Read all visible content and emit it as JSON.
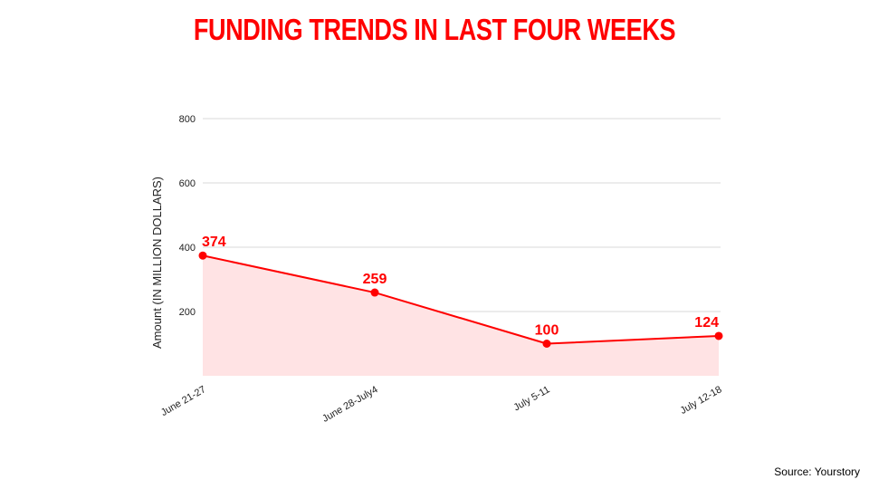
{
  "colors": {
    "accent": "#ff0000",
    "area_fill": "#ffe3e4",
    "grid": "#d9d9d9"
  },
  "source": "Source: Yourstory",
  "chart_data": {
    "type": "area",
    "title": "FUNDING TRENDS IN LAST FOUR WEEKS",
    "xlabel": "",
    "ylabel": "Amount (IN MILLION DOLLARS)",
    "categories": [
      "June 21-27",
      "June 28-July4",
      "July 5-11",
      "July 12-18"
    ],
    "series": [
      {
        "values": [
          374,
          259,
          100,
          124
        ]
      }
    ],
    "data_labels": [
      "374",
      "259",
      "100",
      "124"
    ],
    "y_ticks": [
      "200",
      "400",
      "600",
      "800"
    ],
    "ylim": [
      0,
      800
    ],
    "grid": true,
    "legend": "none"
  }
}
